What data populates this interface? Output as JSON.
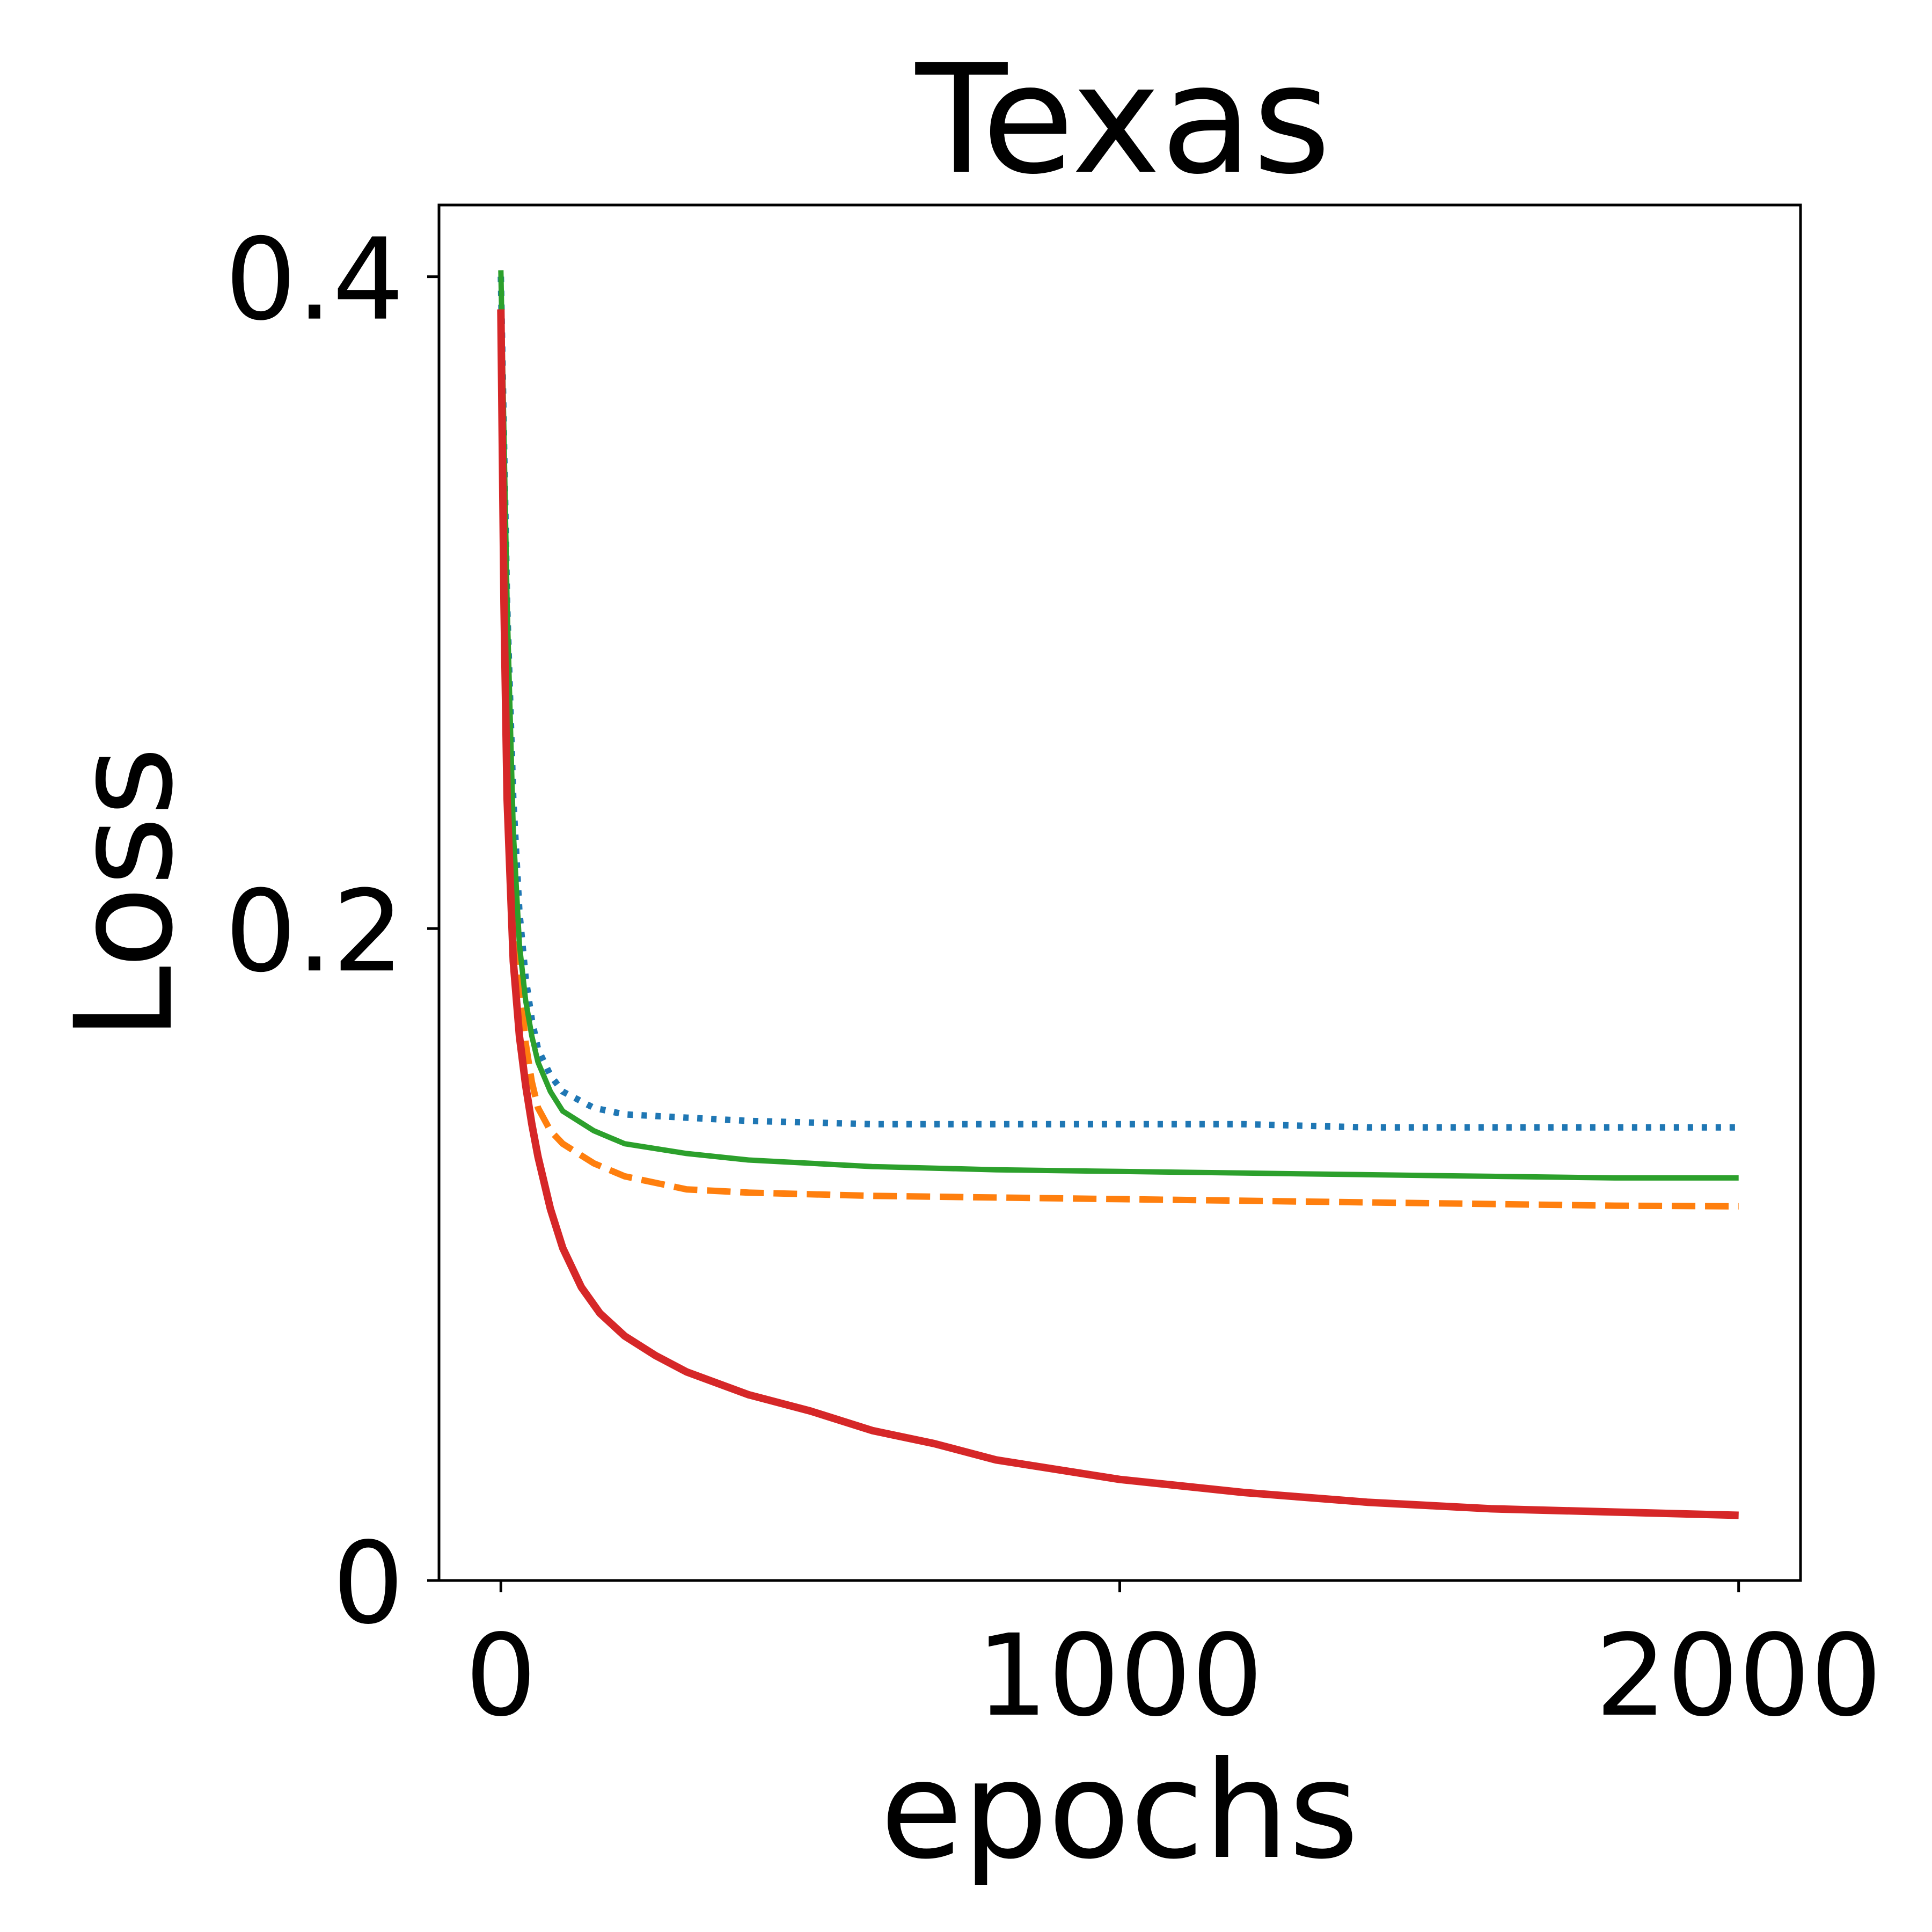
{
  "chart_data": {
    "type": "line",
    "title": "Texas",
    "xlabel": "epochs",
    "ylabel": "Loss",
    "xlim": [
      -100,
      2100
    ],
    "ylim": [
      0,
      0.422
    ],
    "xticks": [
      0,
      1000,
      2000
    ],
    "xtick_labels": [
      "0",
      "1000",
      "2000"
    ],
    "yticks": [
      0,
      0.2,
      0.4
    ],
    "ytick_labels": [
      "0",
      "0.2",
      "0.4"
    ],
    "grid": false,
    "legend": "none",
    "series": [
      {
        "color": "#1f77b4",
        "dash": "dotted",
        "x": [
          0,
          10,
          20,
          30,
          40,
          50,
          60,
          80,
          100,
          150,
          200,
          300,
          400,
          600,
          800,
          1000,
          1200,
          1400,
          1600,
          1800,
          2000
        ],
        "y": [
          0.4,
          0.3,
          0.24,
          0.205,
          0.185,
          0.172,
          0.163,
          0.155,
          0.15,
          0.145,
          0.143,
          0.142,
          0.141,
          0.14,
          0.14,
          0.14,
          0.14,
          0.139,
          0.139,
          0.139,
          0.139
        ]
      },
      {
        "color": "#ff7f0e",
        "dash": "dashed",
        "x": [
          0,
          10,
          20,
          30,
          40,
          50,
          60,
          80,
          100,
          150,
          200,
          300,
          400,
          600,
          800,
          1000,
          1200,
          1400,
          1600,
          1800,
          2000
        ],
        "y": [
          0.39,
          0.28,
          0.22,
          0.185,
          0.165,
          0.153,
          0.145,
          0.138,
          0.134,
          0.128,
          0.124,
          0.12,
          0.119,
          0.118,
          0.1175,
          0.117,
          0.1165,
          0.116,
          0.1155,
          0.115,
          0.1148
        ]
      },
      {
        "color": "#2ca02c",
        "dash": "solid",
        "x": [
          0,
          10,
          20,
          30,
          40,
          50,
          60,
          80,
          100,
          150,
          200,
          300,
          400,
          600,
          800,
          1000,
          1200,
          1400,
          1600,
          1800,
          2000
        ],
        "y": [
          0.402,
          0.3,
          0.23,
          0.195,
          0.178,
          0.167,
          0.159,
          0.15,
          0.144,
          0.138,
          0.134,
          0.131,
          0.129,
          0.127,
          0.126,
          0.1255,
          0.125,
          0.1245,
          0.124,
          0.1235,
          0.1235
        ]
      },
      {
        "color": "#d62728",
        "dash": "solid",
        "x": [
          0,
          5,
          10,
          20,
          30,
          40,
          50,
          60,
          80,
          100,
          130,
          160,
          200,
          250,
          300,
          400,
          500,
          600,
          700,
          800,
          900,
          1000,
          1200,
          1400,
          1600,
          1800,
          2000
        ],
        "y": [
          0.39,
          0.3,
          0.24,
          0.19,
          0.167,
          0.152,
          0.14,
          0.13,
          0.114,
          0.102,
          0.09,
          0.082,
          0.075,
          0.069,
          0.064,
          0.057,
          0.052,
          0.046,
          0.042,
          0.037,
          0.034,
          0.031,
          0.027,
          0.024,
          0.022,
          0.021,
          0.02
        ]
      }
    ]
  }
}
